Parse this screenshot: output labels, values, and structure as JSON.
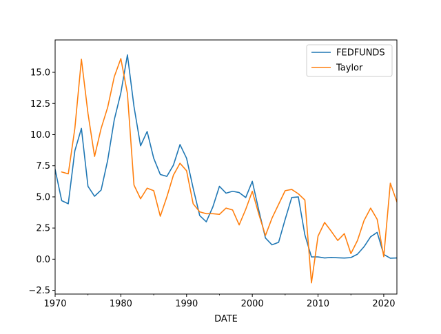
{
  "chart_data": {
    "type": "line",
    "title": "",
    "xlabel": "DATE",
    "ylabel": "",
    "xlim": [
      1970,
      2022
    ],
    "ylim": [
      -2.8,
      17.6
    ],
    "x_ticks": [
      1970,
      1980,
      1990,
      2000,
      2010,
      2020
    ],
    "x_tick_labels": [
      "1970",
      "1980",
      "1990",
      "2000",
      "2010",
      "2020"
    ],
    "y_ticks": [
      -2.5,
      0.0,
      2.5,
      5.0,
      7.5,
      10.0,
      12.5,
      15.0
    ],
    "y_tick_labels": [
      "−2.5",
      "0.0",
      "2.5",
      "5.0",
      "7.5",
      "10.0",
      "12.5",
      "15.0"
    ],
    "grid": false,
    "legend": "top-right",
    "series": [
      {
        "name": "FEDFUNDS",
        "color": "#1f77b4",
        "x": [
          1970,
          1971,
          1972,
          1973,
          1974,
          1975,
          1976,
          1977,
          1978,
          1979,
          1980,
          1981,
          1982,
          1983,
          1984,
          1985,
          1986,
          1987,
          1988,
          1989,
          1990,
          1991,
          1992,
          1993,
          1994,
          1995,
          1996,
          1997,
          1998,
          1999,
          2000,
          2001,
          2002,
          2003,
          2004,
          2005,
          2006,
          2007,
          2008,
          2009,
          2010,
          2011,
          2012,
          2013,
          2014,
          2015,
          2016,
          2017,
          2018,
          2019,
          2020,
          2021,
          2022
        ],
        "values": [
          7.2,
          4.7,
          4.45,
          8.7,
          10.5,
          5.85,
          5.05,
          5.55,
          7.95,
          11.2,
          13.35,
          16.4,
          12.25,
          9.1,
          10.25,
          8.1,
          6.8,
          6.65,
          7.55,
          9.2,
          8.1,
          5.7,
          3.5,
          3.0,
          4.2,
          5.85,
          5.3,
          5.45,
          5.35,
          4.95,
          6.25,
          3.9,
          1.7,
          1.15,
          1.35,
          3.2,
          4.95,
          5.0,
          1.95,
          0.18,
          0.18,
          0.1,
          0.14,
          0.11,
          0.09,
          0.13,
          0.4,
          1.0,
          1.8,
          2.15,
          0.38,
          0.08,
          0.1
        ]
      },
      {
        "name": "Taylor",
        "color": "#ff7f0e",
        "x": [
          1971,
          1972,
          1973,
          1974,
          1975,
          1976,
          1977,
          1978,
          1979,
          1980,
          1981,
          1982,
          1983,
          1984,
          1985,
          1986,
          1987,
          1988,
          1989,
          1990,
          1991,
          1992,
          1993,
          1994,
          1995,
          1996,
          1997,
          1998,
          1999,
          2000,
          2001,
          2002,
          2003,
          2004,
          2005,
          2006,
          2007,
          2008,
          2009,
          2010,
          2011,
          2012,
          2013,
          2014,
          2015,
          2016,
          2017,
          2018,
          2019,
          2020,
          2021,
          2022
        ],
        "values": [
          7.0,
          6.85,
          10.5,
          16.05,
          11.7,
          8.25,
          10.5,
          12.2,
          14.65,
          16.1,
          13.3,
          5.95,
          4.85,
          5.7,
          5.5,
          3.45,
          5.0,
          6.75,
          7.7,
          7.1,
          4.45,
          3.8,
          3.65,
          3.65,
          3.6,
          4.1,
          3.95,
          2.75,
          4.0,
          5.45,
          3.6,
          1.9,
          3.3,
          4.4,
          5.5,
          5.6,
          5.25,
          4.75,
          -1.9,
          1.85,
          2.95,
          2.25,
          1.5,
          2.05,
          0.45,
          1.5,
          3.1,
          4.1,
          3.2,
          0.2,
          6.1,
          4.6
        ]
      }
    ]
  }
}
